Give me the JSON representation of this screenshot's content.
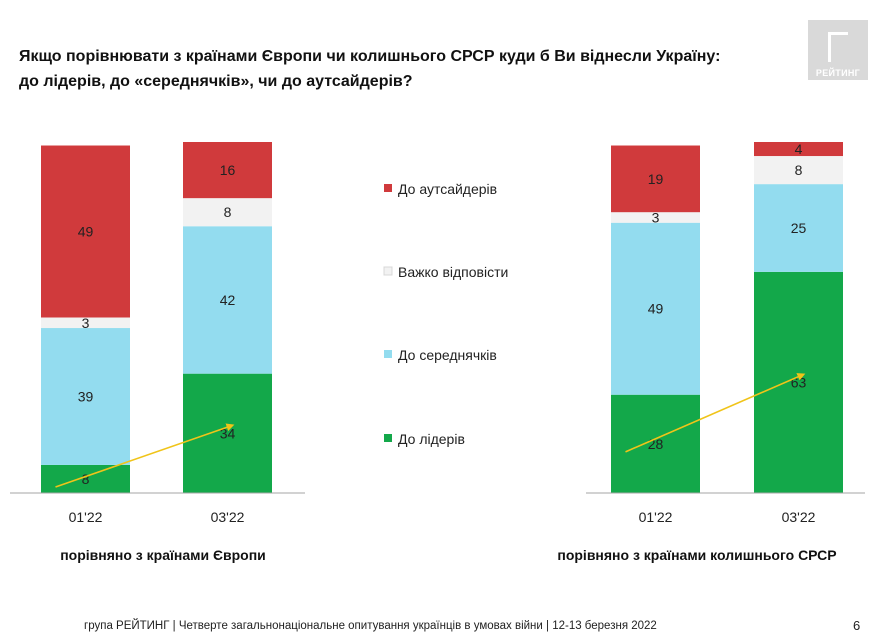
{
  "title": {
    "line1": "Якщо порівнювати з країнами  Європи чи колишнього СРСР куди б Ви віднесли Україну:",
    "line2": "до лідерів, до «середнячків», чи до аутсайдерів?"
  },
  "logo": {
    "text": "РЕЙТИНГ"
  },
  "footer": "група РЕЙТИНГ | Четверте загальнонаціональне опитування українців в умовах війни | 12-13 березня 2022",
  "page_number": "6",
  "colors": {
    "outsiders": "#d03a3c",
    "hard_to_say": "#f2f2f2",
    "middle": "#93dcef",
    "leaders": "#13a84a",
    "arrow": "#f0c419",
    "axis": "#a6a6a6"
  },
  "chart_data": [
    {
      "type": "bar",
      "stacked": true,
      "categories": [
        "01'22",
        "03'22"
      ],
      "group_label": "порівняно з країнами Європи",
      "series": [
        {
          "name": "До лідерів",
          "values": [
            8,
            34
          ]
        },
        {
          "name": "До середнячків",
          "values": [
            39,
            42
          ]
        },
        {
          "name": "Важко відповісти",
          "values": [
            3,
            8
          ]
        },
        {
          "name": "До аутсайдерів",
          "values": [
            49,
            16
          ]
        }
      ],
      "ylim": [
        0,
        100
      ],
      "trend_arrow": {
        "series": "До лідерів",
        "from": "01'22",
        "to": "03'22"
      }
    },
    {
      "type": "bar",
      "stacked": true,
      "categories": [
        "01'22",
        "03'22"
      ],
      "group_label": "порівняно з країнами колишнього СРСР",
      "series": [
        {
          "name": "До лідерів",
          "values": [
            28,
            63
          ]
        },
        {
          "name": "До середнячків",
          "values": [
            49,
            25
          ]
        },
        {
          "name": "Важко відповісти",
          "values": [
            3,
            8
          ]
        },
        {
          "name": "До аутсайдерів",
          "values": [
            19,
            4
          ]
        }
      ],
      "ylim": [
        0,
        100
      ],
      "trend_arrow": {
        "series": "До лідерів",
        "from": "01'22",
        "to": "03'22"
      }
    }
  ],
  "legend": {
    "items": [
      {
        "name": "До аутсайдерів",
        "color": "#d03a3c"
      },
      {
        "name": "Важко відповісти",
        "color": "#f2f2f2"
      },
      {
        "name": "До середнячків",
        "color": "#93dcef"
      },
      {
        "name": "До лідерів",
        "color": "#13a84a"
      }
    ]
  }
}
